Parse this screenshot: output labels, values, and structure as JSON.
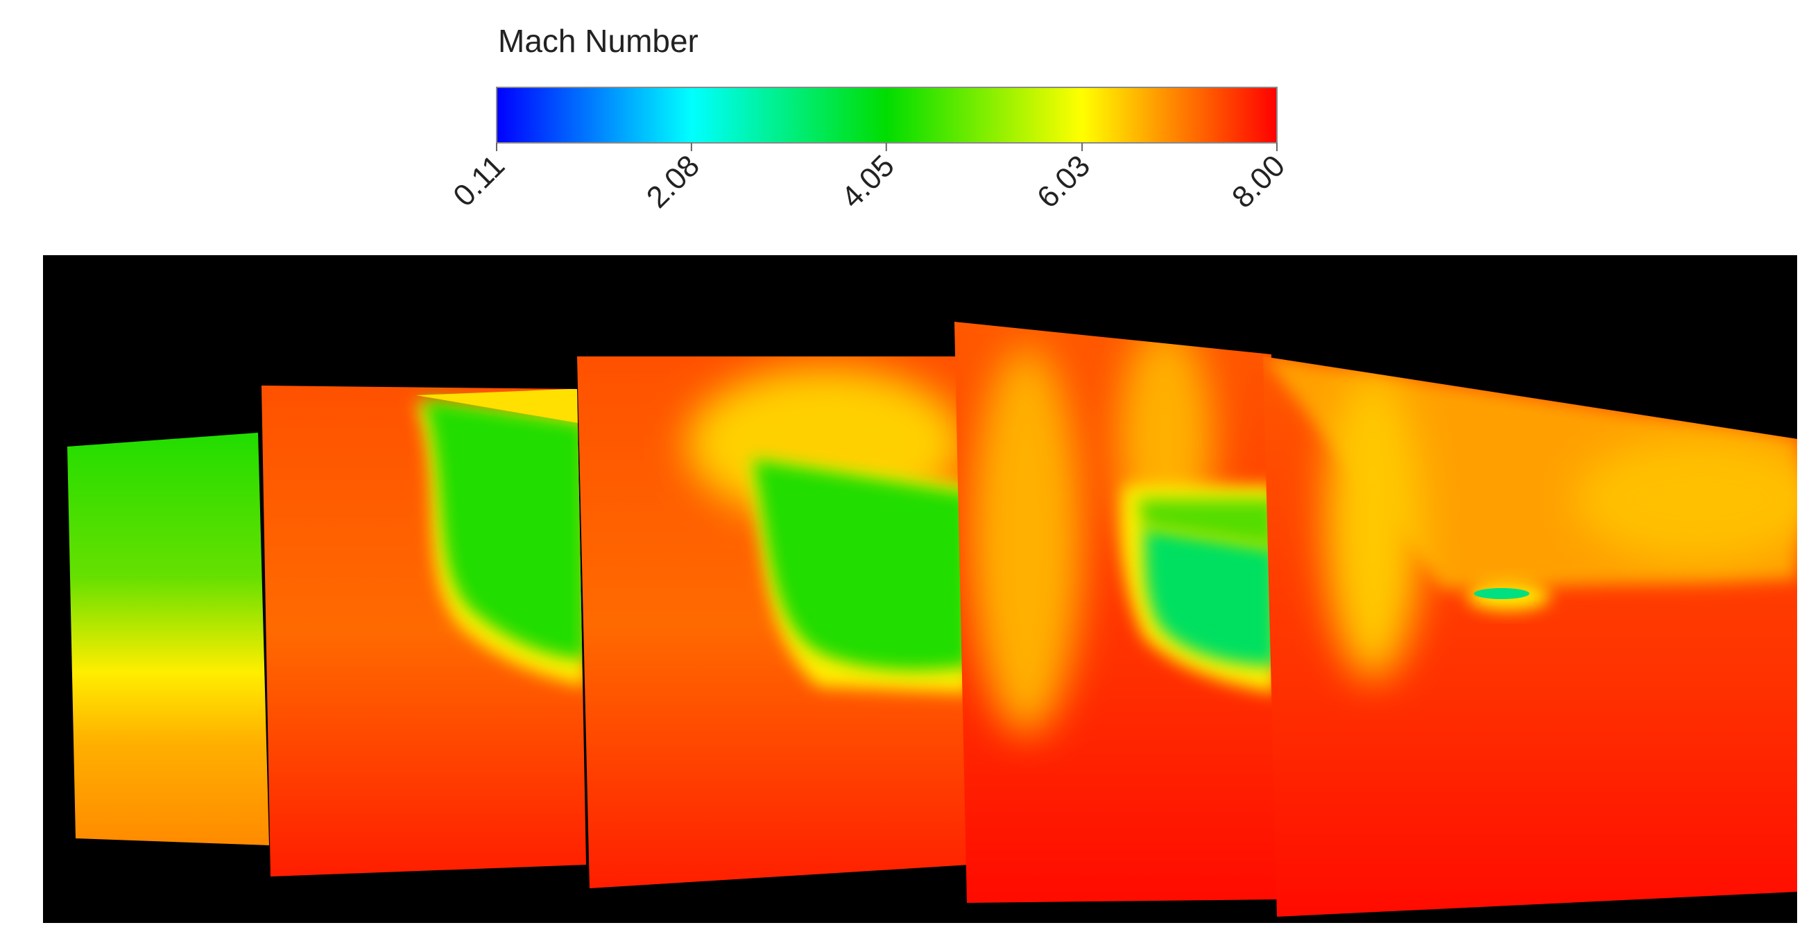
{
  "chart_data": {
    "type": "contour",
    "title": "Mach Number",
    "colorbar": {
      "lim": [
        0.11,
        8.0
      ],
      "ticks": [
        0.11,
        2.08,
        4.05,
        6.03,
        {
          "value": 8.0,
          "label": "8.00"
        }
      ],
      "colors": [
        "#0000ff",
        "#00ffff",
        "#00dd00",
        "#ffff00",
        "#ff0000"
      ]
    }
  }
}
